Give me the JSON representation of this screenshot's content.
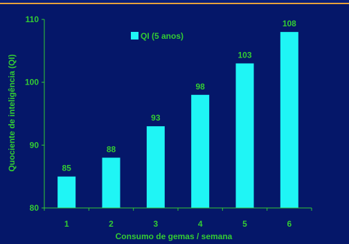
{
  "chart_data": {
    "type": "bar",
    "categories": [
      "1",
      "2",
      "3",
      "4",
      "5",
      "6"
    ],
    "series": [
      {
        "name": "QI (5 anos)",
        "values": [
          85,
          88,
          93,
          98,
          103,
          108
        ]
      }
    ],
    "data_labels": [
      "85",
      "88",
      "93",
      "98",
      "103",
      "108"
    ],
    "xlabel": "Consumo de gemas / semana",
    "ylabel": "Quociente de inteligência (QI)",
    "ylim": [
      80,
      110
    ],
    "yticks": [
      "80",
      "90",
      "100",
      "110"
    ],
    "grid": false,
    "legend_position": "top-center",
    "colors": {
      "background": "#051769",
      "bar": "#1ff5f5",
      "text": "#33cc33",
      "axis": "#33cc33",
      "accent_rule": "#e8a23a"
    }
  }
}
